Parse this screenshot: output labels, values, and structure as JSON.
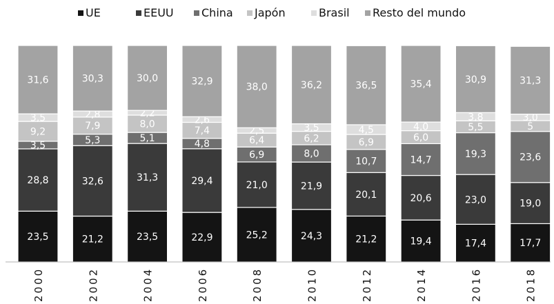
{
  "chart_data": {
    "type": "bar",
    "stacked": true,
    "title": "",
    "xlabel": "",
    "ylabel": "",
    "ylim": [
      0,
      100
    ],
    "grid": false,
    "legend_position": "top",
    "categories": [
      "2000",
      "2002",
      "2004",
      "2006",
      "2008",
      "2010",
      "2012",
      "2014",
      "2016",
      "2018"
    ],
    "series": [
      {
        "name": "UE",
        "color": "#141414",
        "values": [
          23.5,
          21.2,
          23.5,
          22.9,
          25.2,
          24.3,
          21.2,
          19.4,
          17.4,
          17.7
        ],
        "labels": [
          "23,5",
          "21,2",
          "23,5",
          "22,9",
          "25,2",
          "24,3",
          "21,2",
          "19,4",
          "17,4",
          "17,7"
        ]
      },
      {
        "name": "EEUU",
        "color": "#3a3a3a",
        "values": [
          28.8,
          32.6,
          31.3,
          29.4,
          21.0,
          21.9,
          20.1,
          20.6,
          23.0,
          19.0
        ],
        "labels": [
          "28,8",
          "32,6",
          "31,3",
          "29,4",
          "21,0",
          "21,9",
          "20,1",
          "20,6",
          "23,0",
          "19,0"
        ]
      },
      {
        "name": "China",
        "color": "#6f6f6f",
        "values": [
          3.5,
          5.3,
          5.1,
          4.8,
          6.9,
          8.0,
          10.7,
          14.7,
          19.3,
          23.6
        ],
        "labels": [
          "3,5",
          "5,3",
          "5,1",
          "4,8",
          "6,9",
          "8,0",
          "10,7",
          "14,7",
          "19,3",
          "23,6"
        ]
      },
      {
        "name": "Japón",
        "color": "#c4c4c4",
        "values": [
          9.2,
          7.9,
          8.0,
          7.4,
          6.4,
          6.2,
          6.9,
          6.0,
          5.5,
          5.0
        ],
        "labels": [
          "9,2",
          "7,9",
          "8,0",
          "7,4",
          "6,4",
          "6,2",
          "6,9",
          "6,0",
          "5,5",
          "5"
        ]
      },
      {
        "name": "Brasil",
        "color": "#dedede",
        "values": [
          3.5,
          2.8,
          2.2,
          2.6,
          2.5,
          3.5,
          4.5,
          4.0,
          3.8,
          3.0
        ],
        "labels": [
          "3,5",
          "2,8",
          "2,2",
          "2,6",
          "2,5",
          "3,5",
          "4,5",
          "4,0",
          "3,8",
          "3,0"
        ]
      },
      {
        "name": "Resto del mundo",
        "color": "#a3a3a3",
        "values": [
          31.6,
          30.3,
          30.0,
          32.9,
          38.0,
          36.2,
          36.5,
          35.4,
          30.9,
          31.3
        ],
        "labels": [
          "31,6",
          "30,3",
          "30,0",
          "32,9",
          "38,0",
          "36,2",
          "36,5",
          "35,4",
          "30,9",
          "31,3"
        ]
      }
    ]
  }
}
